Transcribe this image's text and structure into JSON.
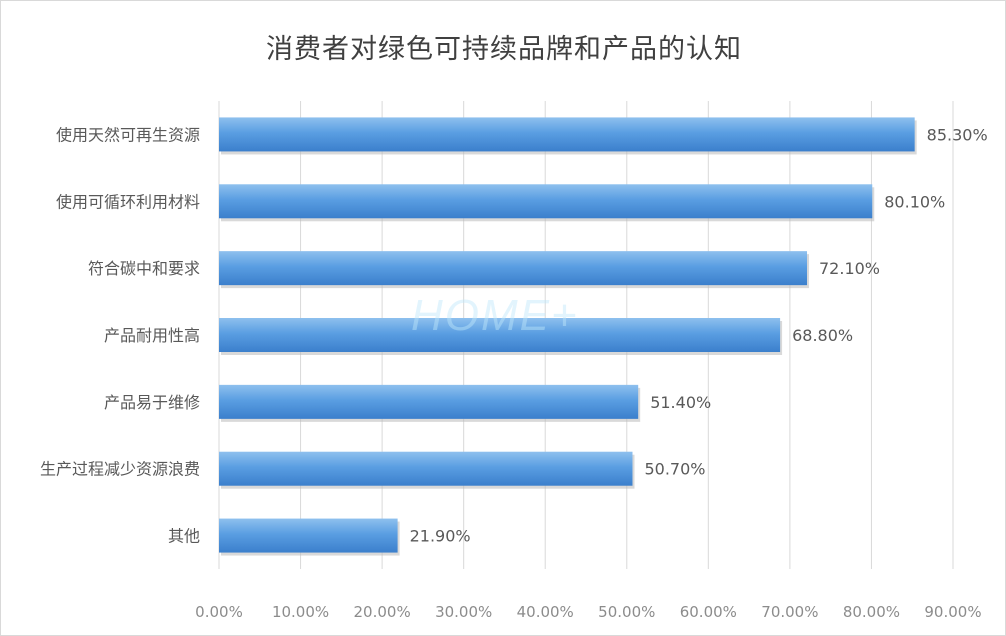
{
  "chart_data": {
    "type": "bar",
    "orientation": "horizontal",
    "title": "消费者对绿色可持续品牌和产品的认知",
    "categories": [
      "使用天然可再生资源",
      "使用可循环利用材料",
      "符合碳中和要求",
      "产品耐用性高",
      "产品易于维修",
      "生产过程减少资源浪费",
      "其他"
    ],
    "values": [
      85.3,
      80.1,
      72.1,
      68.8,
      51.4,
      50.7,
      21.9
    ],
    "value_labels": [
      "85.30%",
      "80.10%",
      "72.10%",
      "68.80%",
      "51.40%",
      "50.70%",
      "21.90%"
    ],
    "xlim": [
      0,
      90
    ],
    "x_ticks": [
      0,
      10,
      20,
      30,
      40,
      50,
      60,
      70,
      80,
      90
    ],
    "x_tick_labels": [
      "0.00%",
      "10.00%",
      "20.00%",
      "30.00%",
      "40.00%",
      "50.00%",
      "60.00%",
      "70.00%",
      "80.00%",
      "90.00%"
    ],
    "grid": "vertical",
    "legend": "none",
    "bar_color": "#4a90d9",
    "watermark": "HOME+"
  }
}
